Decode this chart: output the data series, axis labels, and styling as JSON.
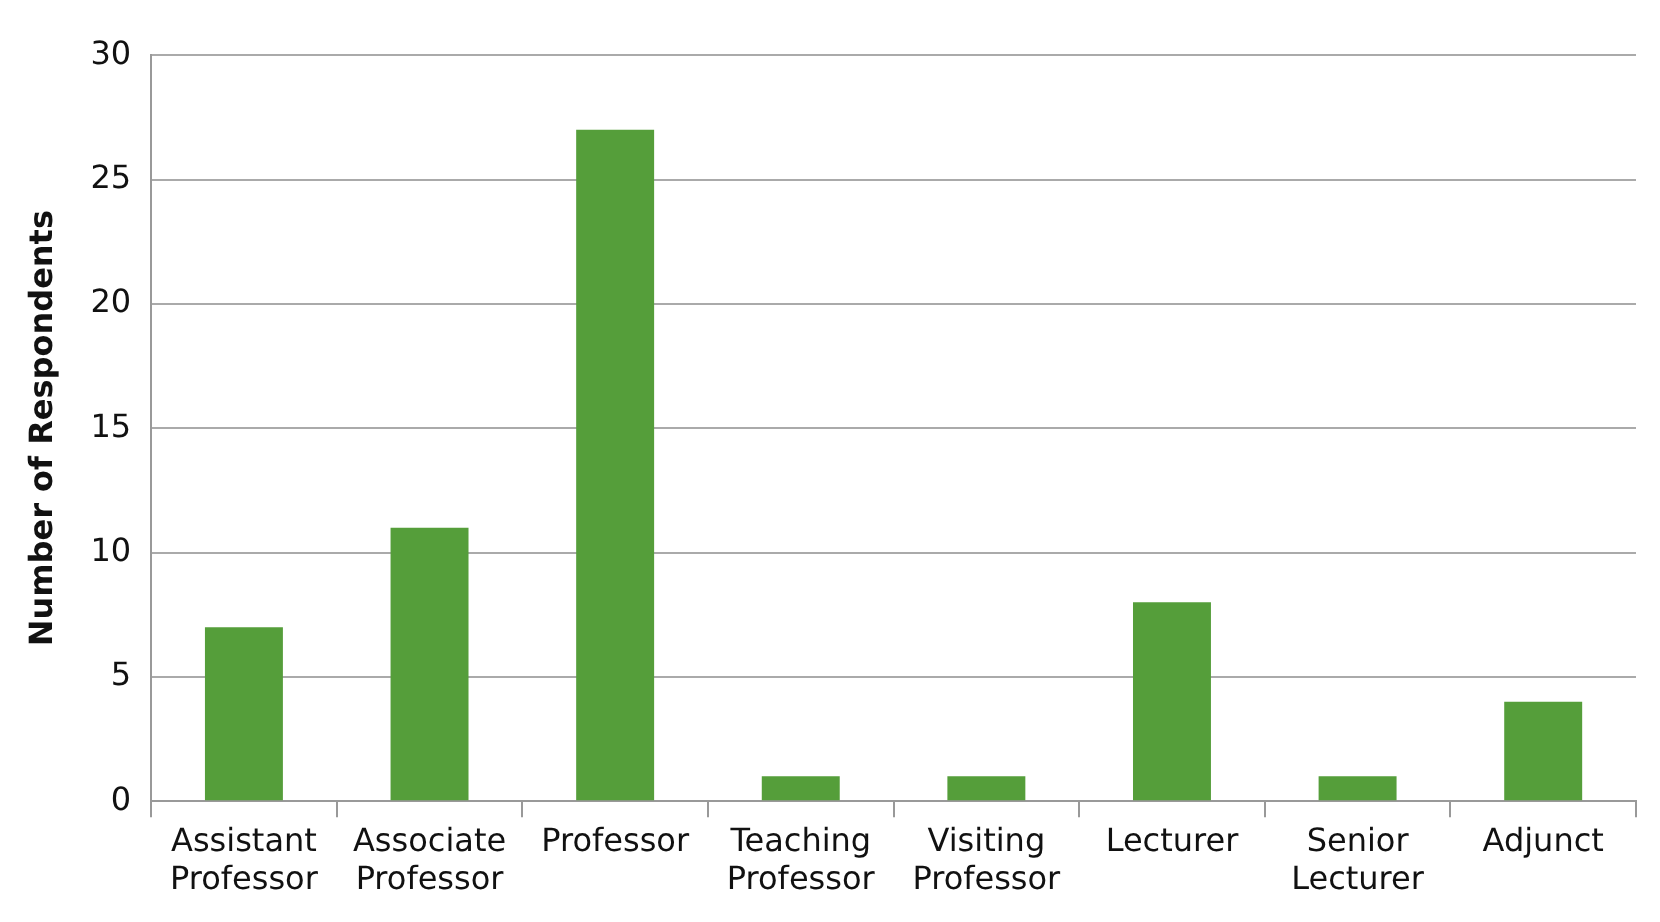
{
  "chart_data": {
    "type": "bar",
    "ylabel": "Number of Respondents",
    "categories": [
      "Assistant Professor",
      "Associate Professor",
      "Professor",
      "Teaching Professor",
      "Visiting Professor",
      "Lecturer",
      "Senior Lecturer",
      "Adjunct"
    ],
    "values": [
      7,
      11,
      27,
      1,
      1,
      8,
      1,
      4
    ],
    "color": "#559e3a",
    "ylim": [
      0,
      30
    ],
    "yticks": [
      0,
      5,
      10,
      15,
      20,
      25,
      30
    ],
    "grid": "y"
  }
}
